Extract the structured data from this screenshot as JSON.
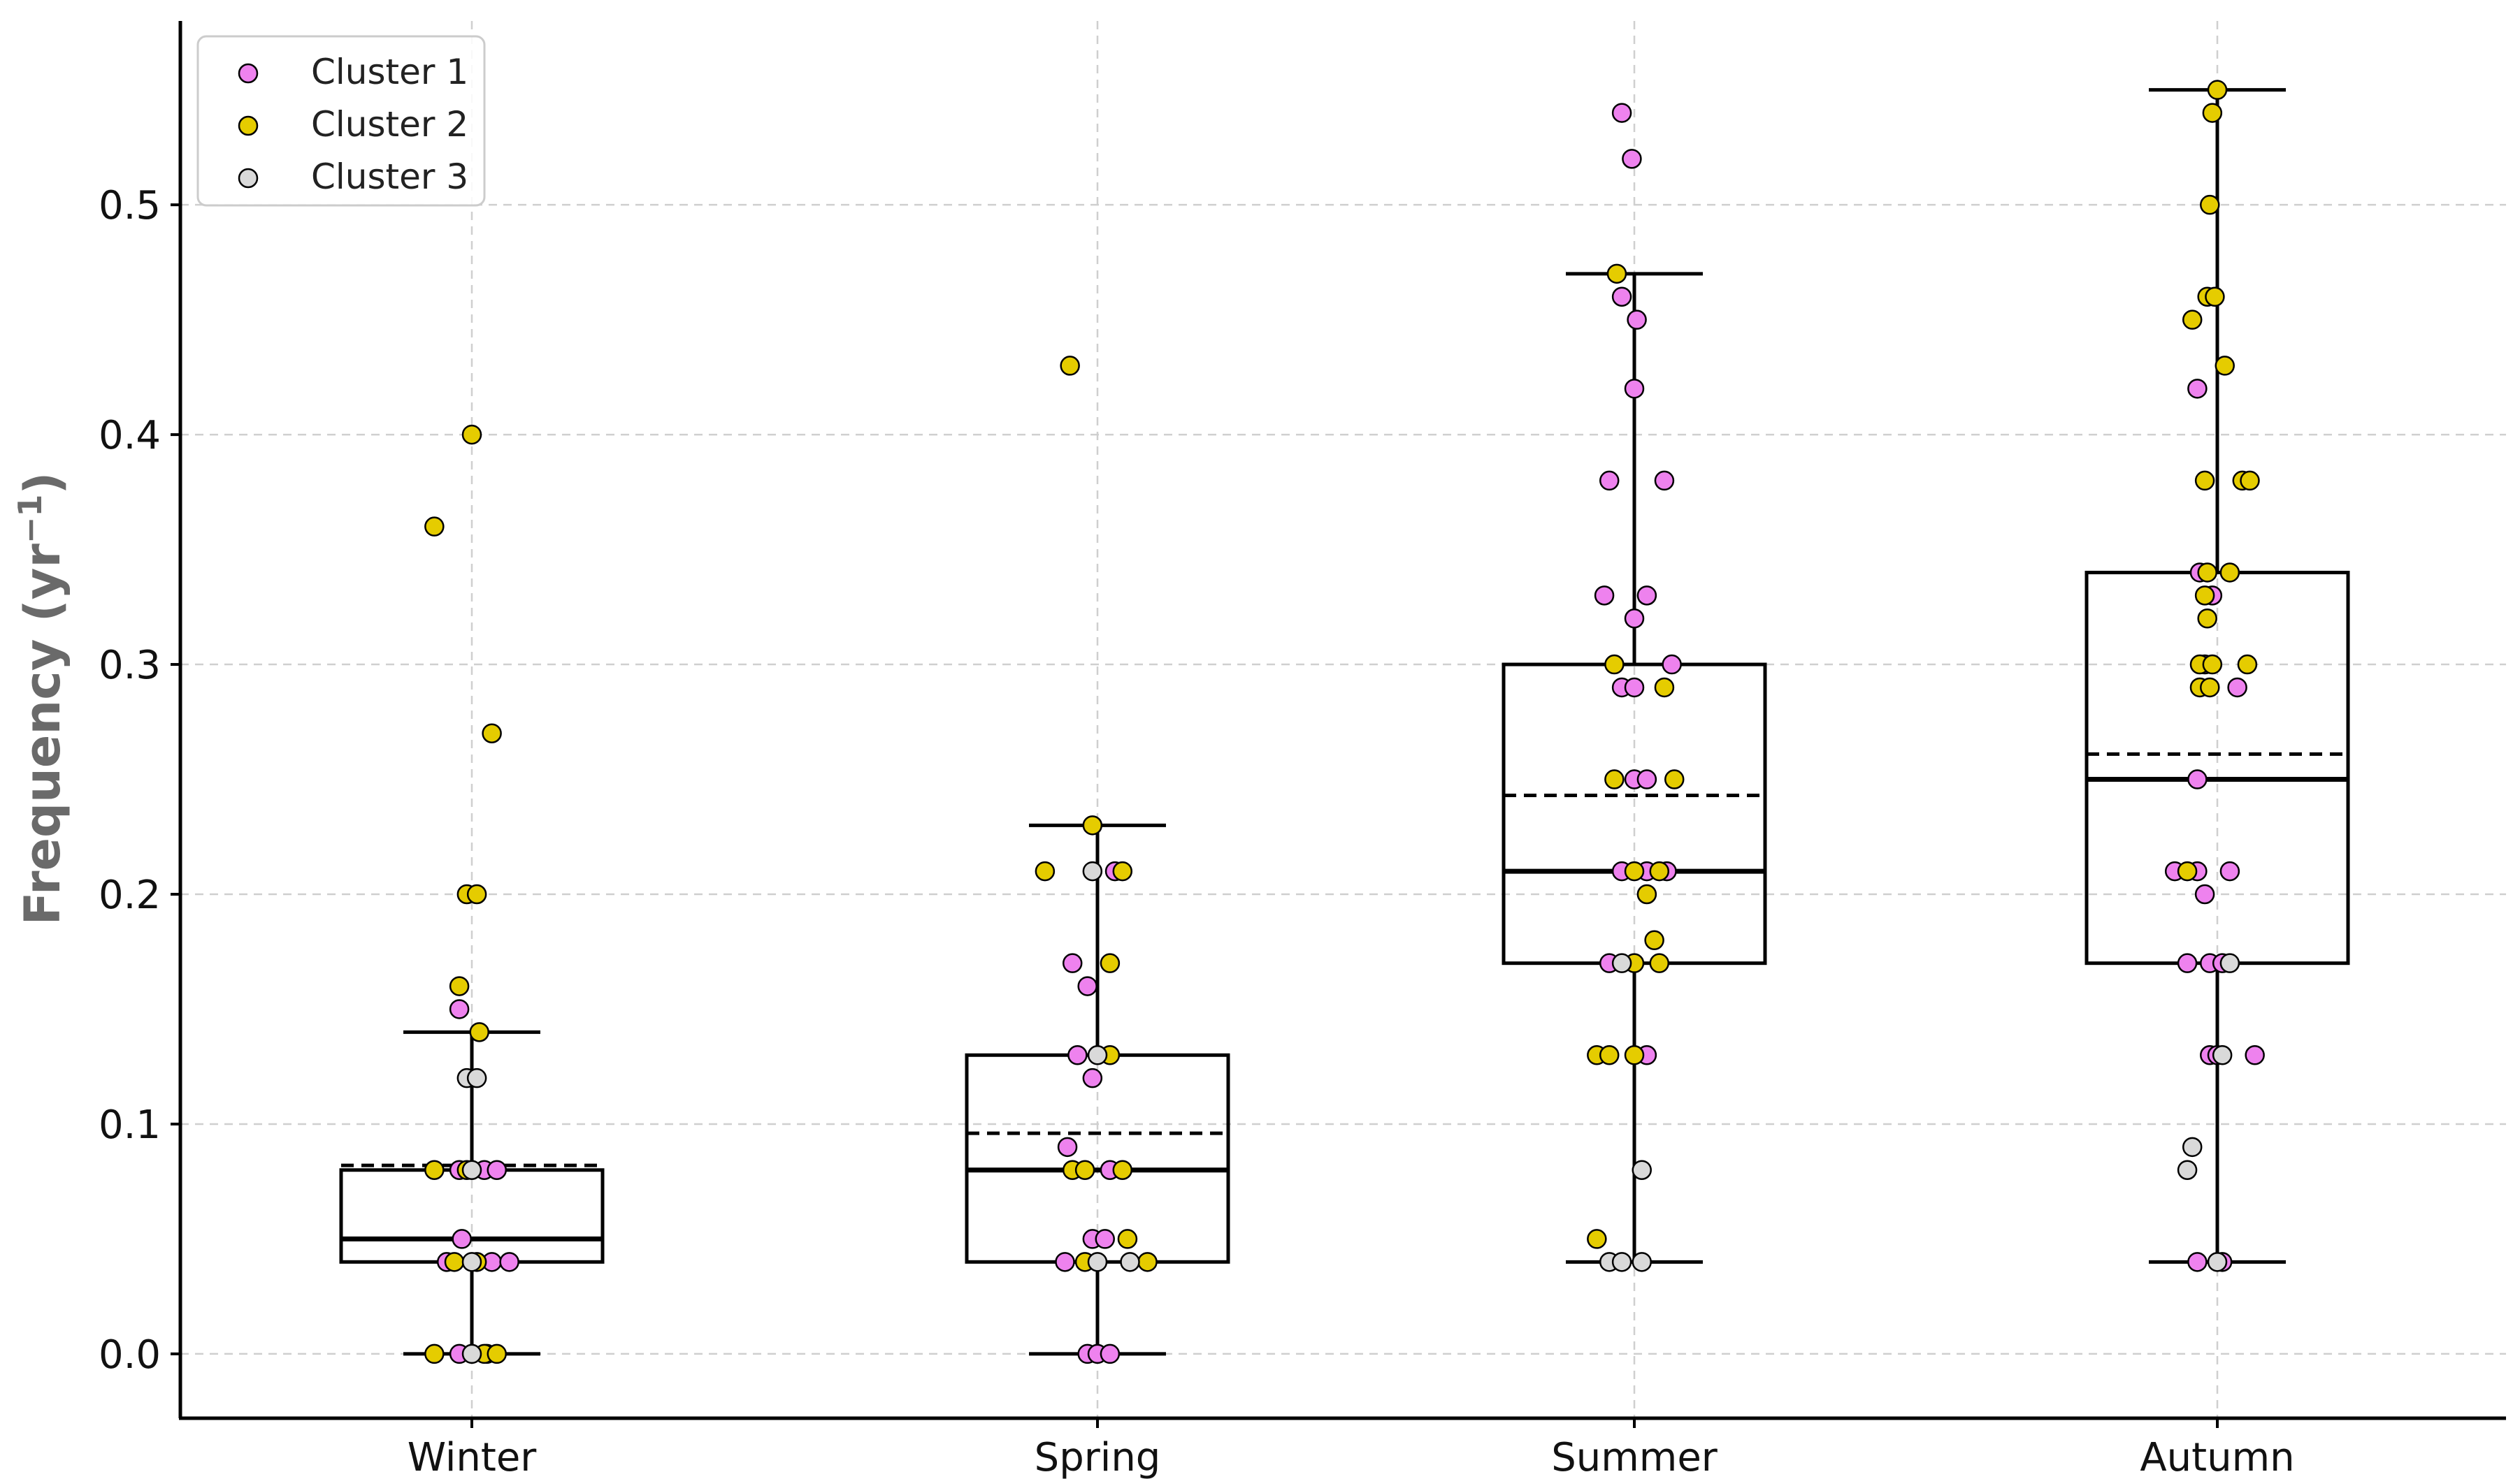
{
  "chart_data": {
    "type": "box",
    "title": "",
    "xlabel": "",
    "ylabel": "Frequency (yr",
    "ylabel_exponent": "−1",
    "ylabel_close": ")",
    "ylim": [
      -0.028,
      0.58
    ],
    "yticks": [
      0.0,
      0.1,
      0.2,
      0.3,
      0.4,
      0.5
    ],
    "ytick_labels": [
      "0.0",
      "0.1",
      "0.2",
      "0.3",
      "0.4",
      "0.5"
    ],
    "grid": true,
    "legend_position": "top-left",
    "categories": [
      "Winter",
      "Spring",
      "Summer",
      "Autumn"
    ],
    "series": [
      {
        "name": "Cluster 1",
        "color": "#ee82ee"
      },
      {
        "name": "Cluster 2",
        "color": "#e5cc00"
      },
      {
        "name": "Cluster 3",
        "color": "#d9d9d9"
      }
    ],
    "boxes": [
      {
        "category": "Winter",
        "q1": 0.04,
        "median": 0.05,
        "q3": 0.08,
        "mean": 0.082,
        "whisker_low": 0.0,
        "whisker_high": 0.14
      },
      {
        "category": "Spring",
        "q1": 0.04,
        "median": 0.08,
        "q3": 0.13,
        "mean": 0.096,
        "whisker_low": 0.0,
        "whisker_high": 0.23
      },
      {
        "category": "Summer",
        "q1": 0.17,
        "median": 0.21,
        "q3": 0.3,
        "mean": 0.243,
        "whisker_low": 0.04,
        "whisker_high": 0.47
      },
      {
        "category": "Autumn",
        "q1": 0.17,
        "median": 0.25,
        "q3": 0.34,
        "mean": 0.261,
        "whisker_low": 0.04,
        "whisker_high": 0.55
      }
    ],
    "points": [
      {
        "category": "Winter",
        "cluster": 1,
        "offset": -0.05,
        "value": 0.15
      },
      {
        "category": "Winter",
        "cluster": 1,
        "offset": -0.05,
        "value": 0.08
      },
      {
        "category": "Winter",
        "cluster": 1,
        "offset": 0.05,
        "value": 0.08
      },
      {
        "category": "Winter",
        "cluster": 1,
        "offset": 0.1,
        "value": 0.08
      },
      {
        "category": "Winter",
        "cluster": 1,
        "offset": -0.04,
        "value": 0.05
      },
      {
        "category": "Winter",
        "cluster": 1,
        "offset": -0.1,
        "value": 0.04
      },
      {
        "category": "Winter",
        "cluster": 1,
        "offset": 0.08,
        "value": 0.04
      },
      {
        "category": "Winter",
        "cluster": 1,
        "offset": 0.15,
        "value": 0.04
      },
      {
        "category": "Winter",
        "cluster": 1,
        "offset": -0.05,
        "value": 0.0
      },
      {
        "category": "Winter",
        "cluster": 1,
        "offset": 0.06,
        "value": 0.0
      },
      {
        "category": "Winter",
        "cluster": 2,
        "offset": 0.0,
        "value": 0.4
      },
      {
        "category": "Winter",
        "cluster": 2,
        "offset": -0.15,
        "value": 0.36
      },
      {
        "category": "Winter",
        "cluster": 2,
        "offset": 0.08,
        "value": 0.27
      },
      {
        "category": "Winter",
        "cluster": 2,
        "offset": -0.02,
        "value": 0.2
      },
      {
        "category": "Winter",
        "cluster": 2,
        "offset": 0.02,
        "value": 0.2
      },
      {
        "category": "Winter",
        "cluster": 2,
        "offset": -0.05,
        "value": 0.16
      },
      {
        "category": "Winter",
        "cluster": 2,
        "offset": 0.03,
        "value": 0.14
      },
      {
        "category": "Winter",
        "cluster": 2,
        "offset": -0.15,
        "value": 0.08
      },
      {
        "category": "Winter",
        "cluster": 2,
        "offset": -0.02,
        "value": 0.08
      },
      {
        "category": "Winter",
        "cluster": 2,
        "offset": -0.07,
        "value": 0.04
      },
      {
        "category": "Winter",
        "cluster": 2,
        "offset": 0.02,
        "value": 0.04
      },
      {
        "category": "Winter",
        "cluster": 2,
        "offset": -0.15,
        "value": 0.0
      },
      {
        "category": "Winter",
        "cluster": 2,
        "offset": 0.05,
        "value": 0.0
      },
      {
        "category": "Winter",
        "cluster": 2,
        "offset": 0.1,
        "value": 0.0
      },
      {
        "category": "Winter",
        "cluster": 3,
        "offset": -0.02,
        "value": 0.12
      },
      {
        "category": "Winter",
        "cluster": 3,
        "offset": 0.02,
        "value": 0.12
      },
      {
        "category": "Winter",
        "cluster": 3,
        "offset": 0.0,
        "value": 0.08
      },
      {
        "category": "Winter",
        "cluster": 3,
        "offset": 0.0,
        "value": 0.04
      },
      {
        "category": "Winter",
        "cluster": 3,
        "offset": 0.0,
        "value": 0.0
      },
      {
        "category": "Spring",
        "cluster": 1,
        "offset": -0.1,
        "value": 0.17
      },
      {
        "category": "Spring",
        "cluster": 1,
        "offset": -0.04,
        "value": 0.16
      },
      {
        "category": "Spring",
        "cluster": 1,
        "offset": -0.08,
        "value": 0.13
      },
      {
        "category": "Spring",
        "cluster": 1,
        "offset": -0.02,
        "value": 0.12
      },
      {
        "category": "Spring",
        "cluster": 1,
        "offset": -0.12,
        "value": 0.09
      },
      {
        "category": "Spring",
        "cluster": 1,
        "offset": 0.05,
        "value": 0.08
      },
      {
        "category": "Spring",
        "cluster": 1,
        "offset": -0.02,
        "value": 0.05
      },
      {
        "category": "Spring",
        "cluster": 1,
        "offset": 0.03,
        "value": 0.05
      },
      {
        "category": "Spring",
        "cluster": 1,
        "offset": -0.13,
        "value": 0.04
      },
      {
        "category": "Spring",
        "cluster": 1,
        "offset": -0.04,
        "value": 0.0
      },
      {
        "category": "Spring",
        "cluster": 1,
        "offset": 0.0,
        "value": 0.0
      },
      {
        "category": "Spring",
        "cluster": 1,
        "offset": 0.05,
        "value": 0.0
      },
      {
        "category": "Spring",
        "cluster": 1,
        "offset": 0.07,
        "value": 0.21
      },
      {
        "category": "Spring",
        "cluster": 2,
        "offset": -0.11,
        "value": 0.43
      },
      {
        "category": "Spring",
        "cluster": 2,
        "offset": -0.21,
        "value": 0.21
      },
      {
        "category": "Spring",
        "cluster": 2,
        "offset": -0.02,
        "value": 0.23
      },
      {
        "category": "Spring",
        "cluster": 2,
        "offset": 0.05,
        "value": 0.17
      },
      {
        "category": "Spring",
        "cluster": 2,
        "offset": 0.05,
        "value": 0.13
      },
      {
        "category": "Spring",
        "cluster": 2,
        "offset": -0.1,
        "value": 0.08
      },
      {
        "category": "Spring",
        "cluster": 2,
        "offset": -0.05,
        "value": 0.08
      },
      {
        "category": "Spring",
        "cluster": 2,
        "offset": 0.1,
        "value": 0.08
      },
      {
        "category": "Spring",
        "cluster": 2,
        "offset": 0.12,
        "value": 0.05
      },
      {
        "category": "Spring",
        "cluster": 2,
        "offset": -0.05,
        "value": 0.04
      },
      {
        "category": "Spring",
        "cluster": 2,
        "offset": 0.2,
        "value": 0.04
      },
      {
        "category": "Spring",
        "cluster": 2,
        "offset": 0.1,
        "value": 0.21
      },
      {
        "category": "Spring",
        "cluster": 3,
        "offset": -0.02,
        "value": 0.21
      },
      {
        "category": "Spring",
        "cluster": 3,
        "offset": 0.0,
        "value": 0.13
      },
      {
        "category": "Spring",
        "cluster": 3,
        "offset": 0.0,
        "value": 0.04
      },
      {
        "category": "Spring",
        "cluster": 3,
        "offset": 0.13,
        "value": 0.04
      },
      {
        "category": "Summer",
        "cluster": 1,
        "offset": -0.05,
        "value": 0.54
      },
      {
        "category": "Summer",
        "cluster": 1,
        "offset": -0.01,
        "value": 0.52
      },
      {
        "category": "Summer",
        "cluster": 1,
        "offset": -0.05,
        "value": 0.46
      },
      {
        "category": "Summer",
        "cluster": 1,
        "offset": 0.01,
        "value": 0.45
      },
      {
        "category": "Summer",
        "cluster": 1,
        "offset": 0.0,
        "value": 0.42
      },
      {
        "category": "Summer",
        "cluster": 1,
        "offset": -0.1,
        "value": 0.38
      },
      {
        "category": "Summer",
        "cluster": 1,
        "offset": 0.12,
        "value": 0.38
      },
      {
        "category": "Summer",
        "cluster": 1,
        "offset": -0.12,
        "value": 0.33
      },
      {
        "category": "Summer",
        "cluster": 1,
        "offset": 0.05,
        "value": 0.33
      },
      {
        "category": "Summer",
        "cluster": 1,
        "offset": 0.0,
        "value": 0.32
      },
      {
        "category": "Summer",
        "cluster": 1,
        "offset": 0.15,
        "value": 0.3
      },
      {
        "category": "Summer",
        "cluster": 1,
        "offset": -0.05,
        "value": 0.29
      },
      {
        "category": "Summer",
        "cluster": 1,
        "offset": 0.0,
        "value": 0.29
      },
      {
        "category": "Summer",
        "cluster": 1,
        "offset": 0.0,
        "value": 0.25
      },
      {
        "category": "Summer",
        "cluster": 1,
        "offset": 0.05,
        "value": 0.25
      },
      {
        "category": "Summer",
        "cluster": 1,
        "offset": -0.05,
        "value": 0.21
      },
      {
        "category": "Summer",
        "cluster": 1,
        "offset": 0.05,
        "value": 0.21
      },
      {
        "category": "Summer",
        "cluster": 1,
        "offset": 0.13,
        "value": 0.21
      },
      {
        "category": "Summer",
        "cluster": 1,
        "offset": -0.1,
        "value": 0.17
      },
      {
        "category": "Summer",
        "cluster": 1,
        "offset": 0.05,
        "value": 0.13
      },
      {
        "category": "Summer",
        "cluster": 2,
        "offset": -0.07,
        "value": 0.47
      },
      {
        "category": "Summer",
        "cluster": 2,
        "offset": -0.08,
        "value": 0.3
      },
      {
        "category": "Summer",
        "cluster": 2,
        "offset": 0.12,
        "value": 0.29
      },
      {
        "category": "Summer",
        "cluster": 2,
        "offset": -0.08,
        "value": 0.25
      },
      {
        "category": "Summer",
        "cluster": 2,
        "offset": 0.16,
        "value": 0.25
      },
      {
        "category": "Summer",
        "cluster": 2,
        "offset": 0.0,
        "value": 0.21
      },
      {
        "category": "Summer",
        "cluster": 2,
        "offset": 0.1,
        "value": 0.21
      },
      {
        "category": "Summer",
        "cluster": 2,
        "offset": 0.05,
        "value": 0.2
      },
      {
        "category": "Summer",
        "cluster": 2,
        "offset": 0.08,
        "value": 0.18
      },
      {
        "category": "Summer",
        "cluster": 2,
        "offset": 0.0,
        "value": 0.17
      },
      {
        "category": "Summer",
        "cluster": 2,
        "offset": 0.1,
        "value": 0.17
      },
      {
        "category": "Summer",
        "cluster": 2,
        "offset": -0.15,
        "value": 0.13
      },
      {
        "category": "Summer",
        "cluster": 2,
        "offset": -0.1,
        "value": 0.13
      },
      {
        "category": "Summer",
        "cluster": 2,
        "offset": 0.0,
        "value": 0.13
      },
      {
        "category": "Summer",
        "cluster": 2,
        "offset": -0.15,
        "value": 0.05
      },
      {
        "category": "Summer",
        "cluster": 3,
        "offset": -0.05,
        "value": 0.17
      },
      {
        "category": "Summer",
        "cluster": 3,
        "offset": 0.03,
        "value": 0.08
      },
      {
        "category": "Summer",
        "cluster": 3,
        "offset": -0.1,
        "value": 0.04
      },
      {
        "category": "Summer",
        "cluster": 3,
        "offset": -0.05,
        "value": 0.04
      },
      {
        "category": "Summer",
        "cluster": 3,
        "offset": 0.03,
        "value": 0.04
      },
      {
        "category": "Autumn",
        "cluster": 1,
        "offset": -0.08,
        "value": 0.42
      },
      {
        "category": "Autumn",
        "cluster": 1,
        "offset": -0.07,
        "value": 0.34
      },
      {
        "category": "Autumn",
        "cluster": 1,
        "offset": -0.02,
        "value": 0.33
      },
      {
        "category": "Autumn",
        "cluster": 1,
        "offset": -0.05,
        "value": 0.3
      },
      {
        "category": "Autumn",
        "cluster": 1,
        "offset": 0.08,
        "value": 0.29
      },
      {
        "category": "Autumn",
        "cluster": 1,
        "offset": -0.08,
        "value": 0.25
      },
      {
        "category": "Autumn",
        "cluster": 1,
        "offset": -0.17,
        "value": 0.21
      },
      {
        "category": "Autumn",
        "cluster": 1,
        "offset": -0.08,
        "value": 0.21
      },
      {
        "category": "Autumn",
        "cluster": 1,
        "offset": 0.05,
        "value": 0.21
      },
      {
        "category": "Autumn",
        "cluster": 1,
        "offset": -0.05,
        "value": 0.2
      },
      {
        "category": "Autumn",
        "cluster": 1,
        "offset": -0.12,
        "value": 0.17
      },
      {
        "category": "Autumn",
        "cluster": 1,
        "offset": -0.03,
        "value": 0.17
      },
      {
        "category": "Autumn",
        "cluster": 1,
        "offset": 0.02,
        "value": 0.17
      },
      {
        "category": "Autumn",
        "cluster": 1,
        "offset": -0.03,
        "value": 0.13
      },
      {
        "category": "Autumn",
        "cluster": 1,
        "offset": 0.0,
        "value": 0.13
      },
      {
        "category": "Autumn",
        "cluster": 1,
        "offset": 0.15,
        "value": 0.13
      },
      {
        "category": "Autumn",
        "cluster": 1,
        "offset": -0.08,
        "value": 0.04
      },
      {
        "category": "Autumn",
        "cluster": 1,
        "offset": 0.02,
        "value": 0.04
      },
      {
        "category": "Autumn",
        "cluster": 2,
        "offset": -0.02,
        "value": 0.54
      },
      {
        "category": "Autumn",
        "cluster": 2,
        "offset": 0.0,
        "value": 0.55
      },
      {
        "category": "Autumn",
        "cluster": 2,
        "offset": -0.03,
        "value": 0.5
      },
      {
        "category": "Autumn",
        "cluster": 2,
        "offset": -0.04,
        "value": 0.46
      },
      {
        "category": "Autumn",
        "cluster": 2,
        "offset": -0.01,
        "value": 0.46
      },
      {
        "category": "Autumn",
        "cluster": 2,
        "offset": -0.1,
        "value": 0.45
      },
      {
        "category": "Autumn",
        "cluster": 2,
        "offset": 0.03,
        "value": 0.43
      },
      {
        "category": "Autumn",
        "cluster": 2,
        "offset": -0.05,
        "value": 0.38
      },
      {
        "category": "Autumn",
        "cluster": 2,
        "offset": 0.1,
        "value": 0.38
      },
      {
        "category": "Autumn",
        "cluster": 2,
        "offset": 0.13,
        "value": 0.38
      },
      {
        "category": "Autumn",
        "cluster": 2,
        "offset": -0.04,
        "value": 0.34
      },
      {
        "category": "Autumn",
        "cluster": 2,
        "offset": 0.05,
        "value": 0.34
      },
      {
        "category": "Autumn",
        "cluster": 2,
        "offset": -0.05,
        "value": 0.33
      },
      {
        "category": "Autumn",
        "cluster": 2,
        "offset": -0.04,
        "value": 0.32
      },
      {
        "category": "Autumn",
        "cluster": 2,
        "offset": -0.07,
        "value": 0.3
      },
      {
        "category": "Autumn",
        "cluster": 2,
        "offset": -0.02,
        "value": 0.3
      },
      {
        "category": "Autumn",
        "cluster": 2,
        "offset": 0.12,
        "value": 0.3
      },
      {
        "category": "Autumn",
        "cluster": 2,
        "offset": -0.07,
        "value": 0.29
      },
      {
        "category": "Autumn",
        "cluster": 2,
        "offset": -0.03,
        "value": 0.29
      },
      {
        "category": "Autumn",
        "cluster": 2,
        "offset": -0.12,
        "value": 0.21
      },
      {
        "category": "Autumn",
        "cluster": 3,
        "offset": -0.12,
        "value": 0.08
      },
      {
        "category": "Autumn",
        "cluster": 3,
        "offset": -0.1,
        "value": 0.09
      },
      {
        "category": "Autumn",
        "cluster": 3,
        "offset": 0.02,
        "value": 0.13
      },
      {
        "category": "Autumn",
        "cluster": 3,
        "offset": 0.0,
        "value": 0.04
      },
      {
        "category": "Autumn",
        "cluster": 3,
        "offset": 0.05,
        "value": 0.17
      }
    ]
  }
}
